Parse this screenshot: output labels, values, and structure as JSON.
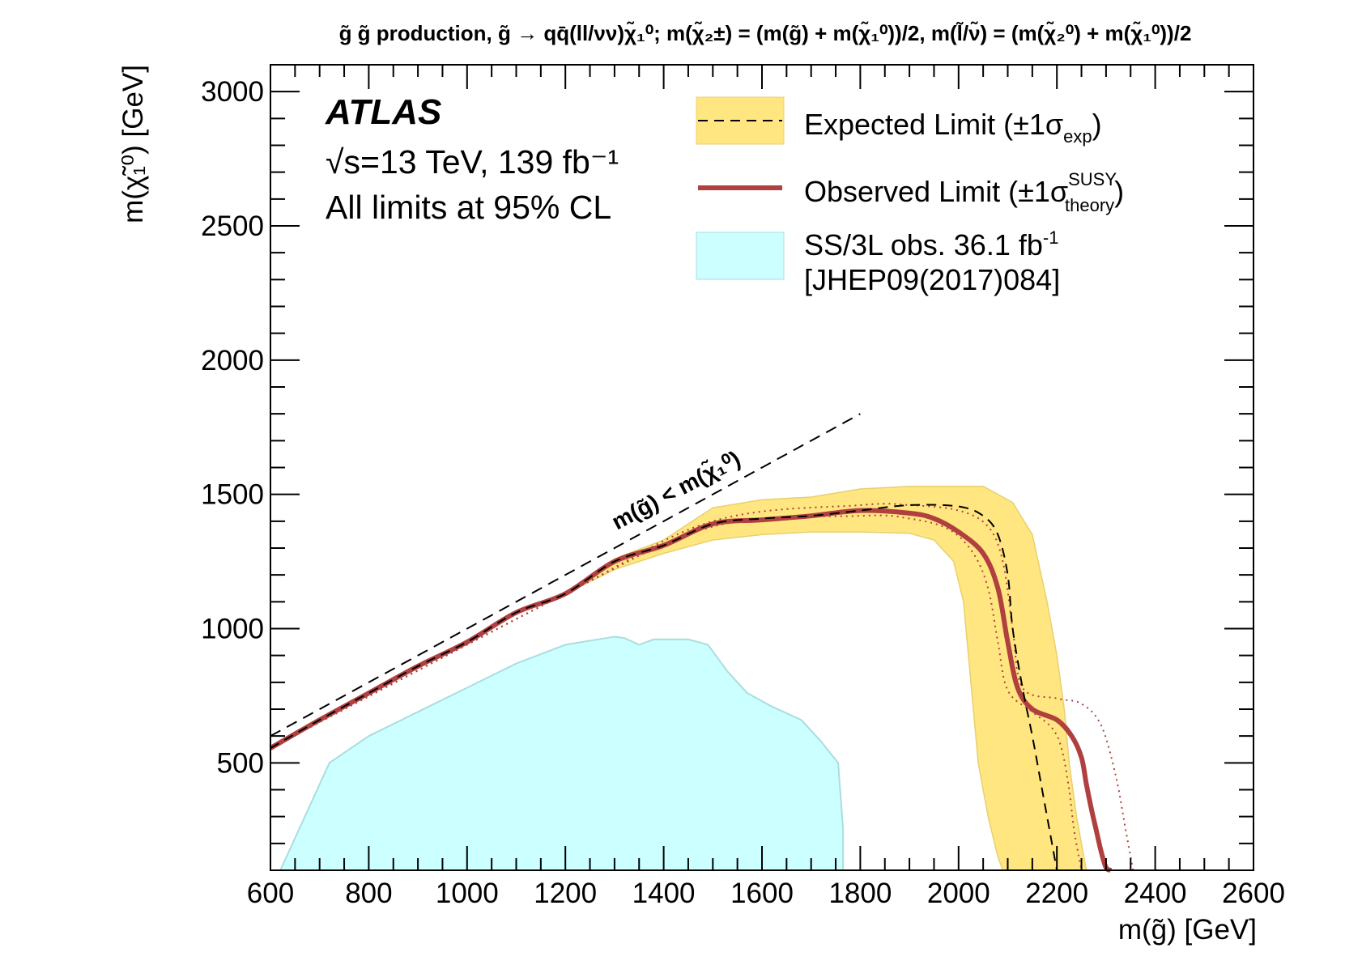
{
  "chart_data": {
    "type": "line",
    "title": "g̃ g̃ production, g̃ → qq̄(ll/νν)χ̃₁⁰; m(χ̃₂±) = (m(g̃) + m(χ̃₁⁰))/2, m(l̃/ν̃) = (m(χ̃₂⁰) + m(χ̃₁⁰))/2",
    "xlabel": "m(g̃) [GeV]",
    "ylabel": "m(χ̃₁⁰) [GeV]",
    "xlim": [
      600,
      2600
    ],
    "ylim": [
      100,
      3100
    ],
    "x_ticks": [
      600,
      800,
      1000,
      1200,
      1400,
      1600,
      1800,
      2000,
      2200,
      2400,
      2600
    ],
    "y_ticks": [
      500,
      1000,
      1500,
      2000,
      2500,
      3000
    ],
    "experiment": "ATLAS",
    "energy_label": "√s=13 TeV, 139 fb⁻¹",
    "cl_label": "All limits at 95% CL",
    "kinematic_label": "m(g̃) < m(χ̃₁⁰)",
    "kinematic_line": {
      "x": [
        600,
        1800
      ],
      "y": [
        600,
        1800
      ]
    },
    "legend_position": "top-right",
    "series": [
      {
        "name": "Expected Limit (±1σexp)",
        "role": "expected",
        "color": "#000000",
        "x": [
          600,
          700,
          800,
          900,
          1000,
          1100,
          1200,
          1300,
          1400,
          1500,
          1600,
          1700,
          1800,
          1900,
          2000,
          2050,
          2080,
          2100,
          2110,
          2130,
          2150,
          2170,
          2190,
          2200
        ],
        "y": [
          555,
          660,
          760,
          860,
          950,
          1060,
          1130,
          1250,
          1310,
          1390,
          1410,
          1420,
          1440,
          1460,
          1455,
          1420,
          1350,
          1200,
          1000,
          780,
          600,
          400,
          200,
          100
        ]
      },
      {
        "name": "Expected band upper (+1σexp)",
        "role": "band",
        "x": [
          1200,
          1300,
          1400,
          1500,
          1600,
          1700,
          1800,
          1900,
          2000,
          2050,
          2110,
          2150,
          2180,
          2200,
          2215,
          2225,
          2240,
          2260
        ],
        "y": [
          1130,
          1260,
          1330,
          1450,
          1480,
          1490,
          1520,
          1530,
          1530,
          1530,
          1470,
          1350,
          1100,
          900,
          700,
          500,
          300,
          100
        ]
      },
      {
        "name": "Expected band lower (−1σexp)",
        "role": "band",
        "x": [
          1200,
          1300,
          1400,
          1500,
          1600,
          1700,
          1800,
          1900,
          1950,
          1990,
          2010,
          2020,
          2030,
          2040,
          2060,
          2080,
          2090
        ],
        "y": [
          1130,
          1220,
          1280,
          1330,
          1350,
          1360,
          1360,
          1355,
          1330,
          1250,
          1100,
          900,
          700,
          500,
          300,
          150,
          100
        ]
      },
      {
        "name": "Observed Limit (±1σtheory SUSY)",
        "role": "observed",
        "color": "#b04040",
        "x": [
          600,
          700,
          800,
          900,
          1000,
          1100,
          1200,
          1300,
          1400,
          1500,
          1600,
          1700,
          1800,
          1900,
          1950,
          2000,
          2050,
          2080,
          2100,
          2120,
          2150,
          2200,
          2230,
          2250,
          2260,
          2270,
          2280,
          2290,
          2300,
          2310
        ],
        "y": [
          555,
          660,
          760,
          860,
          950,
          1060,
          1130,
          1250,
          1310,
          1390,
          1405,
          1420,
          1440,
          1430,
          1410,
          1360,
          1280,
          1150,
          950,
          780,
          700,
          660,
          600,
          520,
          420,
          330,
          250,
          170,
          110,
          100
        ]
      },
      {
        "name": "Observed −1σ theory",
        "role": "observed-dotted",
        "x": [
          600,
          1200,
          1500,
          1800,
          1900,
          1980,
          2030,
          2060,
          2080,
          2100,
          2150,
          2190,
          2210,
          2225,
          2235,
          2250
        ],
        "y": [
          555,
          1130,
          1380,
          1420,
          1410,
          1370,
          1280,
          1150,
          950,
          770,
          690,
          630,
          550,
          400,
          250,
          100
        ]
      },
      {
        "name": "Observed +1σ theory",
        "role": "observed-dotted",
        "x": [
          600,
          1200,
          1500,
          1800,
          1900,
          2000,
          2060,
          2090,
          2110,
          2130,
          2200,
          2250,
          2290,
          2320,
          2340,
          2355
        ],
        "y": [
          555,
          1130,
          1400,
          1460,
          1460,
          1440,
          1380,
          1250,
          1000,
          780,
          740,
          720,
          640,
          450,
          250,
          100
        ]
      },
      {
        "name": "SS/3L obs. 36.1 fb⁻¹ [JHEP09(2017)084]",
        "role": "previous",
        "color": "#ccffff",
        "x": [
          600,
          620,
          720,
          800,
          900,
          1000,
          1100,
          1200,
          1300,
          1320,
          1350,
          1380,
          1450,
          1490,
          1530,
          1570,
          1620,
          1680,
          1720,
          1755,
          1765,
          1765
        ],
        "y": [
          100,
          100,
          500,
          600,
          690,
          780,
          870,
          940,
          970,
          965,
          940,
          960,
          960,
          940,
          840,
          760,
          710,
          660,
          580,
          500,
          250,
          100
        ]
      }
    ]
  },
  "legend": {
    "expected_main": "Expected Limit (",
    "expected_sigma": "±1σ",
    "expected_sub": "exp",
    "observed_main": "Observed Limit (",
    "observed_sigma": "±1σ",
    "observed_sup": "SUSY",
    "observed_sub": "theory",
    "previous_main": "SS/3L obs. 36.1 fb",
    "previous_sup": "-1",
    "previous_ref": "[JHEP09(2017)084]"
  },
  "colors": {
    "band": "#ffe680",
    "band_edge": "#e8d070",
    "observed": "#b04040",
    "previous": "#ccffff",
    "previous_edge": "#aadede"
  }
}
